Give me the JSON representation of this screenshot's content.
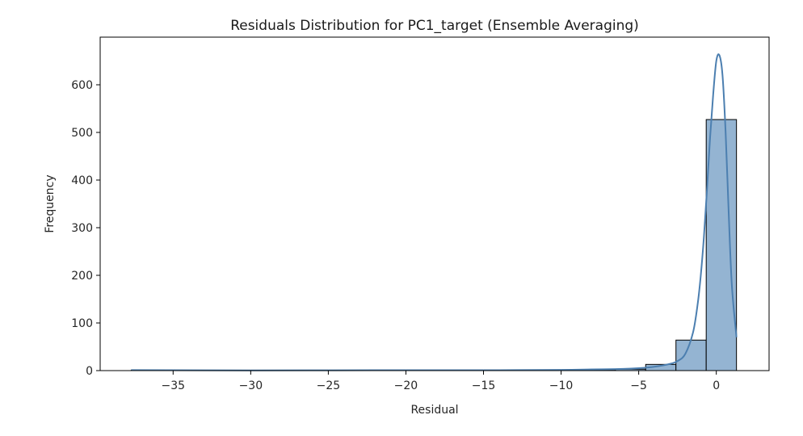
{
  "chart_data": {
    "type": "bar",
    "title": "Residuals Distribution for PC1_target (Ensemble Averaging)",
    "xlabel": "Residual",
    "ylabel": "Frequency",
    "xlim": [
      -39.7,
      3.4
    ],
    "ylim": [
      0,
      700
    ],
    "xticks": [
      -35,
      -30,
      -25,
      -20,
      -15,
      -10,
      -5,
      0
    ],
    "yticks": [
      0,
      100,
      200,
      300,
      400,
      500,
      600
    ],
    "bin_edges": [
      -37.7,
      -35.75,
      -33.8,
      -31.85,
      -29.9,
      -27.95,
      -26.0,
      -24.05,
      -22.1,
      -20.15,
      -18.2,
      -16.25,
      -14.3,
      -12.35,
      -10.4,
      -8.45,
      -6.5,
      -4.55,
      -2.6,
      -0.65,
      1.3
    ],
    "counts": [
      1,
      0,
      0,
      0,
      0,
      0,
      0,
      0,
      0,
      1,
      0,
      0,
      1,
      0,
      1,
      2,
      3,
      13,
      64,
      527
    ],
    "kde": {
      "x": [
        -37.7,
        -30,
        -22,
        -14,
        -10,
        -8,
        -6,
        -5,
        -4,
        -3,
        -2.5,
        -2,
        -1.5,
        -1.2,
        -1.0,
        -0.8,
        -0.6,
        -0.4,
        -0.2,
        0.0,
        0.2,
        0.4,
        0.6,
        0.8,
        1.0,
        1.3
      ],
      "y": [
        1,
        0.5,
        0.8,
        0.8,
        1.5,
        2.5,
        3.5,
        5,
        8,
        14,
        20,
        35,
        80,
        140,
        200,
        280,
        380,
        490,
        580,
        650,
        662,
        620,
        500,
        330,
        180,
        70
      ]
    },
    "colors": {
      "bar_fill": "#94b4d2",
      "bar_edge": "#000000",
      "kde_line": "#4c7fb0"
    }
  }
}
